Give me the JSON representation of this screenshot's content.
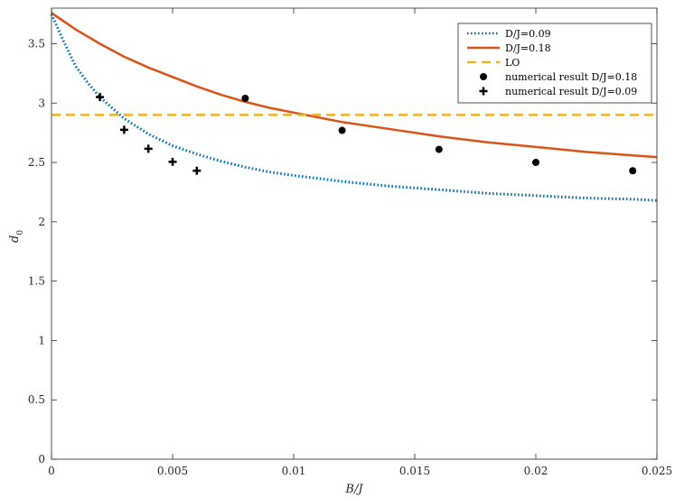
{
  "chart_data": {
    "type": "line",
    "title": "",
    "xlabel": "B/J",
    "ylabel": "d0",
    "xlim": [
      0,
      0.025
    ],
    "ylim": [
      0,
      3.8
    ],
    "xticks": [
      0,
      0.005,
      0.01,
      0.015,
      0.02,
      0.025
    ],
    "xtick_labels": [
      "0",
      "0.005",
      "0.01",
      "0.015",
      "0.02",
      "0.025"
    ],
    "yticks": [
      0,
      0.5,
      1,
      1.5,
      2,
      2.5,
      3,
      3.5
    ],
    "ytick_labels": [
      "0",
      "0.5",
      "1",
      "1.5",
      "2",
      "2.5",
      "3",
      "3.5"
    ],
    "grid": false,
    "legend_position": "top-right",
    "series": [
      {
        "name": "D/J=0.09",
        "kind": "line",
        "style": "dotted",
        "color": "#0072BD",
        "x": [
          0,
          0.0005,
          0.001,
          0.0015,
          0.002,
          0.003,
          0.004,
          0.005,
          0.006,
          0.007,
          0.008,
          0.009,
          0.01,
          0.012,
          0.014,
          0.016,
          0.018,
          0.02,
          0.022,
          0.024,
          0.025
        ],
        "y": [
          3.75,
          3.52,
          3.31,
          3.17,
          3.05,
          2.87,
          2.74,
          2.64,
          2.57,
          2.51,
          2.46,
          2.42,
          2.39,
          2.34,
          2.3,
          2.27,
          2.24,
          2.22,
          2.2,
          2.19,
          2.18
        ]
      },
      {
        "name": "D/J=0.18",
        "kind": "line",
        "style": "solid",
        "color": "#D95319",
        "x": [
          0,
          0.001,
          0.002,
          0.003,
          0.004,
          0.005,
          0.006,
          0.007,
          0.008,
          0.009,
          0.01,
          0.012,
          0.014,
          0.016,
          0.018,
          0.02,
          0.022,
          0.024,
          0.025
        ],
        "y": [
          3.76,
          3.62,
          3.5,
          3.39,
          3.3,
          3.22,
          3.14,
          3.07,
          3.01,
          2.96,
          2.92,
          2.84,
          2.78,
          2.72,
          2.67,
          2.63,
          2.59,
          2.56,
          2.545
        ]
      },
      {
        "name": "LO",
        "kind": "line",
        "style": "dashed",
        "color": "#EDB120",
        "x": [
          0,
          0.025
        ],
        "y": [
          2.9,
          2.9
        ]
      },
      {
        "name": "numerical result D/J=0.18",
        "kind": "scatter",
        "marker": "circle",
        "color": "#000000",
        "x": [
          0.008,
          0.012,
          0.016,
          0.02,
          0.024
        ],
        "y": [
          3.04,
          2.77,
          2.61,
          2.5,
          2.43
        ]
      },
      {
        "name": "numerical result D/J=0.09",
        "kind": "scatter",
        "marker": "plus",
        "color": "#000000",
        "x": [
          0.002,
          0.003,
          0.004,
          0.005,
          0.006
        ],
        "y": [
          3.05,
          2.775,
          2.615,
          2.505,
          2.43
        ]
      }
    ]
  }
}
